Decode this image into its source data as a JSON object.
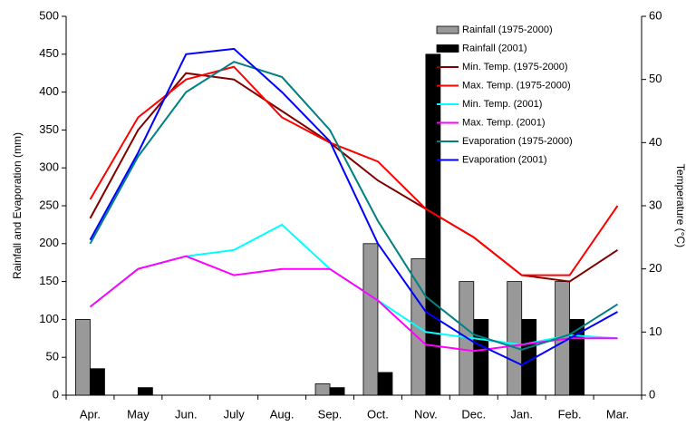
{
  "chart_data": {
    "type": "bar-line",
    "y_label": "Rainfall and Evaporation (mm)",
    "y2_label": "Temperature (°C)",
    "categories": [
      "Apr.",
      "May",
      "Jun.",
      "July",
      "Aug.",
      "Sep.",
      "Oct.",
      "Nov.",
      "Dec.",
      "Jan.",
      "Feb.",
      "Mar."
    ],
    "ylim": [
      0,
      500
    ],
    "yticks": [
      0,
      50,
      100,
      150,
      200,
      250,
      300,
      350,
      400,
      450,
      500
    ],
    "y2lim": [
      0,
      60
    ],
    "y2ticks": [
      0,
      10,
      20,
      30,
      40,
      50,
      60
    ],
    "legend": "upper right",
    "series": [
      {
        "name": "Rainfall  (1975-2000)",
        "kind": "bar",
        "color": "#999999",
        "values": [
          100,
          0,
          0,
          0,
          0,
          15,
          200,
          180,
          150,
          150,
          150,
          0
        ]
      },
      {
        "name": "Rainfall  (2001)",
        "kind": "bar",
        "color": "#000000",
        "values": [
          35,
          10,
          0,
          0,
          0,
          10,
          30,
          450,
          100,
          100,
          100,
          0
        ]
      },
      {
        "name": "Min. Temp.  (1975-2000)",
        "kind": "line",
        "axis": "y2",
        "color": "#800000",
        "values": [
          28,
          42,
          51,
          50,
          45,
          40,
          34,
          29.5,
          25,
          19,
          18,
          23
        ]
      },
      {
        "name": "Max. Temp.  (1975-2000)",
        "kind": "line",
        "axis": "y2",
        "color": "#ff0000",
        "values": [
          31,
          44,
          50,
          52,
          44,
          40,
          37,
          29.5,
          25,
          19,
          19,
          30
        ]
      },
      {
        "name": "Min. Temp.   (2001)",
        "kind": "line",
        "axis": "y2",
        "color": "#00ffff",
        "values": [
          14,
          20,
          22,
          23,
          27,
          20,
          15,
          10,
          9,
          8,
          9.5,
          9
        ]
      },
      {
        "name": "Max. Temp.  (2001)",
        "kind": "line",
        "axis": "y2",
        "color": "#ff00ff",
        "values": [
          14,
          20,
          22,
          19,
          20,
          20,
          15,
          8,
          7,
          8,
          9,
          9
        ]
      },
      {
        "name": "Evaporation  (1975-2000)",
        "kind": "line",
        "color": "#008080",
        "values": [
          200,
          315,
          400,
          440,
          420,
          350,
          230,
          130,
          80,
          60,
          80,
          120
        ]
      },
      {
        "name": "Evaporation  (2001)",
        "kind": "line",
        "color": "#0000ff",
        "values": [
          205,
          320,
          450,
          457,
          400,
          335,
          200,
          110,
          70,
          40,
          75,
          110
        ]
      }
    ]
  }
}
